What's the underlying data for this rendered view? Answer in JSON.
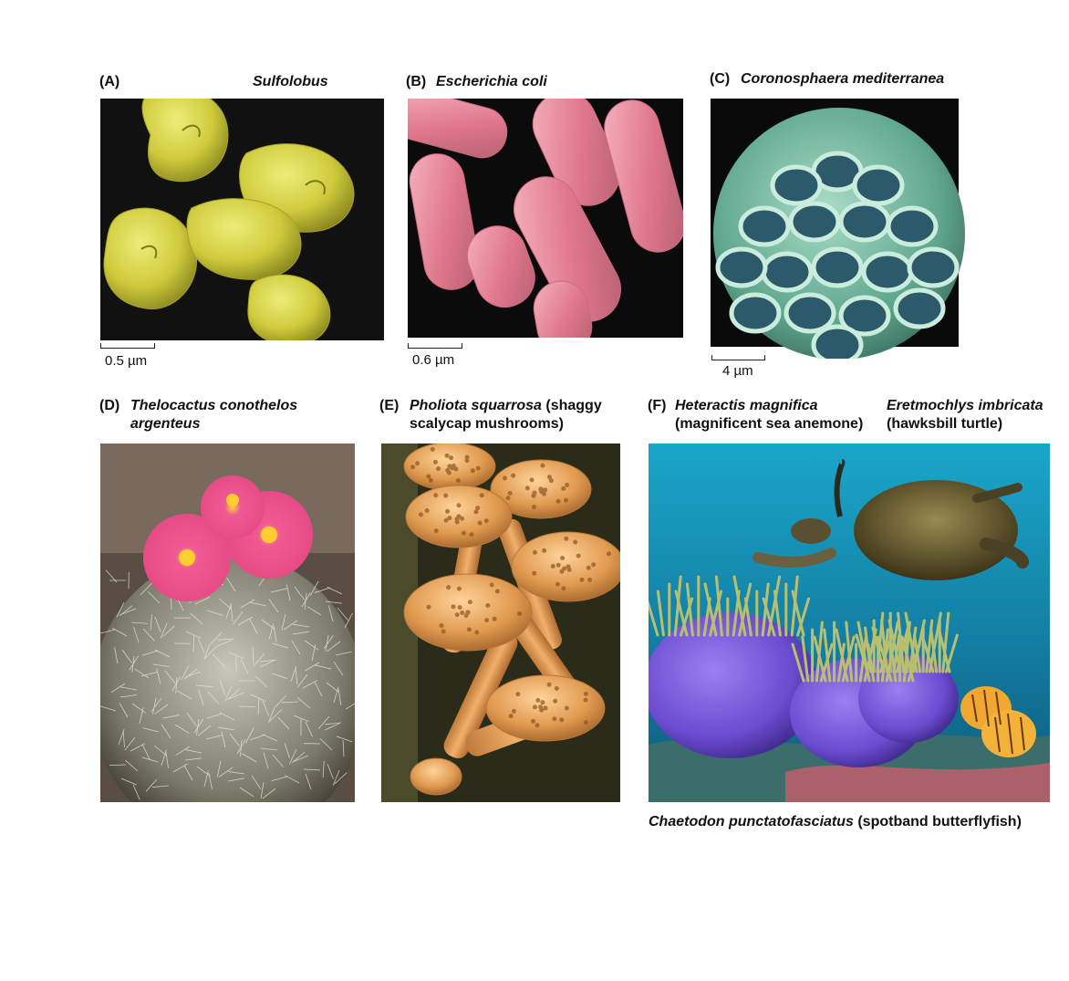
{
  "panels": {
    "a": {
      "letter": "(A)",
      "species": "Sulfolobus",
      "scale": "0.5 µm"
    },
    "b": {
      "letter": "(B)",
      "species": "Escherichia coli",
      "scale": "0.6 µm"
    },
    "c": {
      "letter": "(C)",
      "species": "Coronosphaera mediterranea",
      "scale": "4 µm"
    },
    "d": {
      "letter": "(D)",
      "species_line1": "Thelocactus conothelos",
      "species_line2": "argenteus"
    },
    "e": {
      "letter": "(E)",
      "species": "Pholiota squarrosa",
      "common_line1": " (shaggy",
      "common_line2": "scalycap mushrooms)"
    },
    "f": {
      "letter": "(F)",
      "anemone_species": "Heteractis magnifica",
      "anemone_common": "(magnificent sea anemone)",
      "turtle_species": "Eretmochlys imbricata",
      "turtle_common": "(hawksbill turtle)",
      "fish_species": "Chaetodon punctatofasciatus",
      "fish_common": " (spotband butterflyfish)"
    }
  },
  "colors": {
    "sulfolobus": "#d9d64a",
    "ecoli": "#e6879a",
    "coccolith": "#6fb39c",
    "cactus_flower": "#e8508a",
    "mushroom": "#e0a35a",
    "ocean": "#1f8fb0",
    "anemone": "#6b4bd0"
  }
}
